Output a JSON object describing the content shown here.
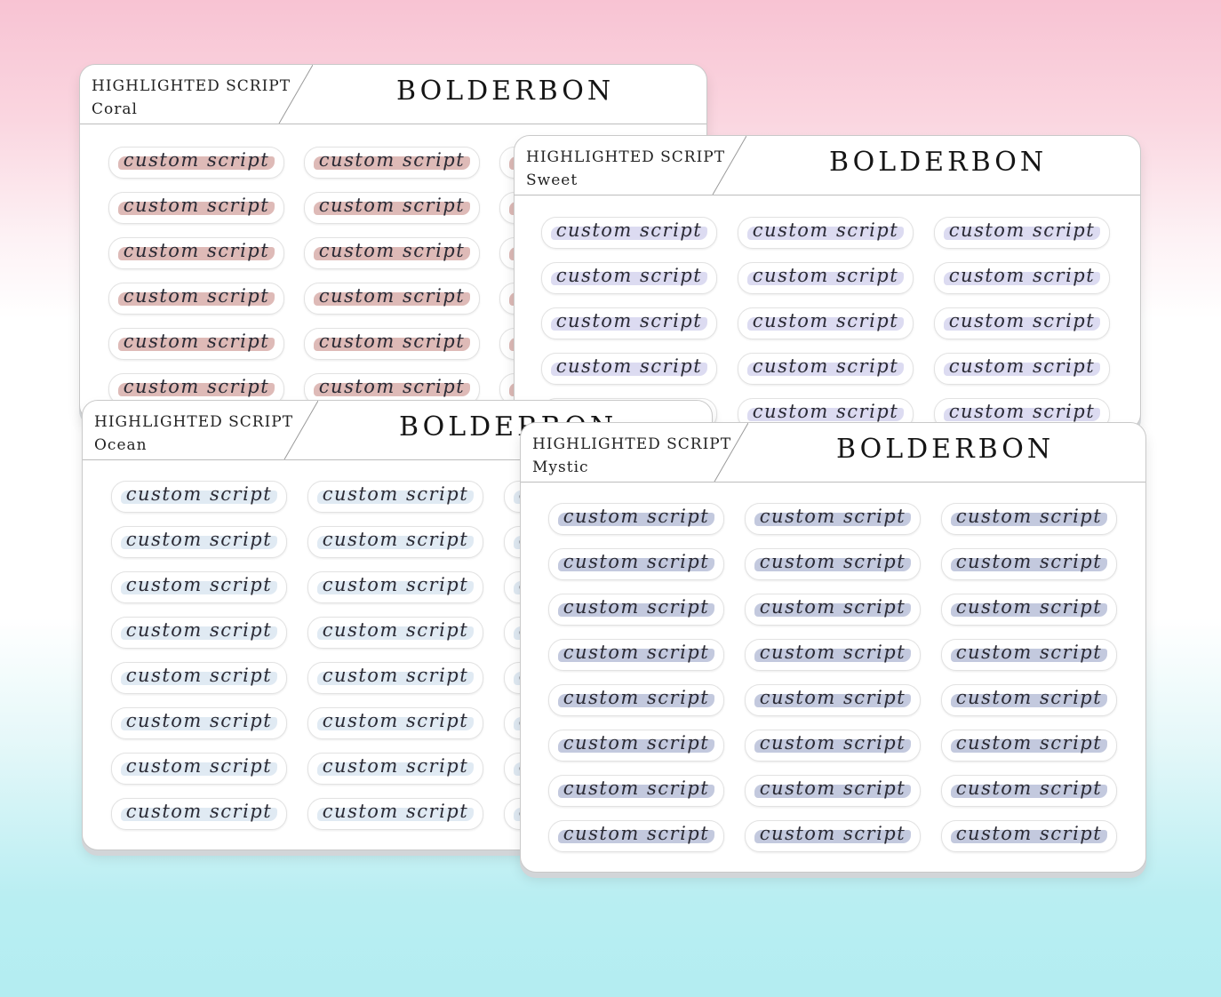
{
  "sticker_text": "custom script",
  "sheets": [
    {
      "id": "coral",
      "series": "HIGHLIGHTED SCRIPT",
      "variant": "Coral",
      "brand": "BOLDERBON",
      "highlight_color": "#d8aeaa",
      "columns": 3,
      "rows": 6
    },
    {
      "id": "sweet",
      "series": "HIGHLIGHTED SCRIPT",
      "variant": "Sweet",
      "brand": "BOLDERBON",
      "highlight_color": "#d6d5ee",
      "columns": 3,
      "rows": 5
    },
    {
      "id": "ocean",
      "series": "HIGHLIGHTED SCRIPT",
      "variant": "Ocean",
      "brand": "BOLDERBON",
      "highlight_color": "#dbe6f1",
      "columns": 3,
      "rows": 8
    },
    {
      "id": "mystic",
      "series": "HIGHLIGHTED SCRIPT",
      "variant": "Mystic",
      "brand": "BOLDERBON",
      "highlight_color": "#b9bfd8",
      "columns": 3,
      "rows": 8
    }
  ]
}
